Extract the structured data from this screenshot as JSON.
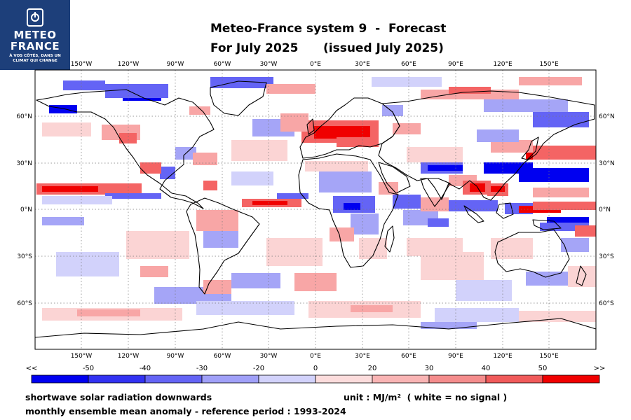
{
  "logo": {
    "line1": "METEO",
    "line2": "FRANCE",
    "tagline1": "À VOS CÔTÉS, DANS UN",
    "tagline2": "CLIMAT QUI CHANGE"
  },
  "title": {
    "line1": "Meteo-France system 9  -  Forecast",
    "line2": "For July 2025      (issued July 2025)"
  },
  "map": {
    "lon_labels": [
      "150°W",
      "120°W",
      "90°W",
      "60°W",
      "30°W",
      "0°E",
      "30°E",
      "60°E",
      "90°E",
      "120°E",
      "150°E"
    ],
    "lat_labels": [
      "60°N",
      "30°N",
      "0°N",
      "30°S",
      "60°S"
    ],
    "colors": {
      "blue_strong": "#0000f0",
      "blue_mid": "#6464f5",
      "blue_light": "#a5a5f7",
      "blue_faint": "#d2d2fb",
      "red_faint": "#fbd4d4",
      "red_light": "#f8a6a6",
      "red_mid": "#f46464",
      "red_strong": "#f00000",
      "coast": "#000000"
    }
  },
  "colorbar": {
    "labels": [
      "<<",
      "-50",
      "-40",
      "-30",
      "-20",
      "0",
      "20",
      "30",
      "40",
      "50",
      ">>"
    ],
    "colors": [
      "#0000f0",
      "#3232f2",
      "#6464f5",
      "#a0a0f8",
      "#d2d2fb",
      "#fcdcdc",
      "#f9b4b4",
      "#f48c8c",
      "#f05a5a",
      "#f00000"
    ]
  },
  "caption": {
    "variable": "shortwave solar radiation downwards",
    "description": "monthly ensemble mean anomaly - reference period : 1993-2024",
    "unit": "unit : MJ/m²  ( white = no signal )"
  }
}
